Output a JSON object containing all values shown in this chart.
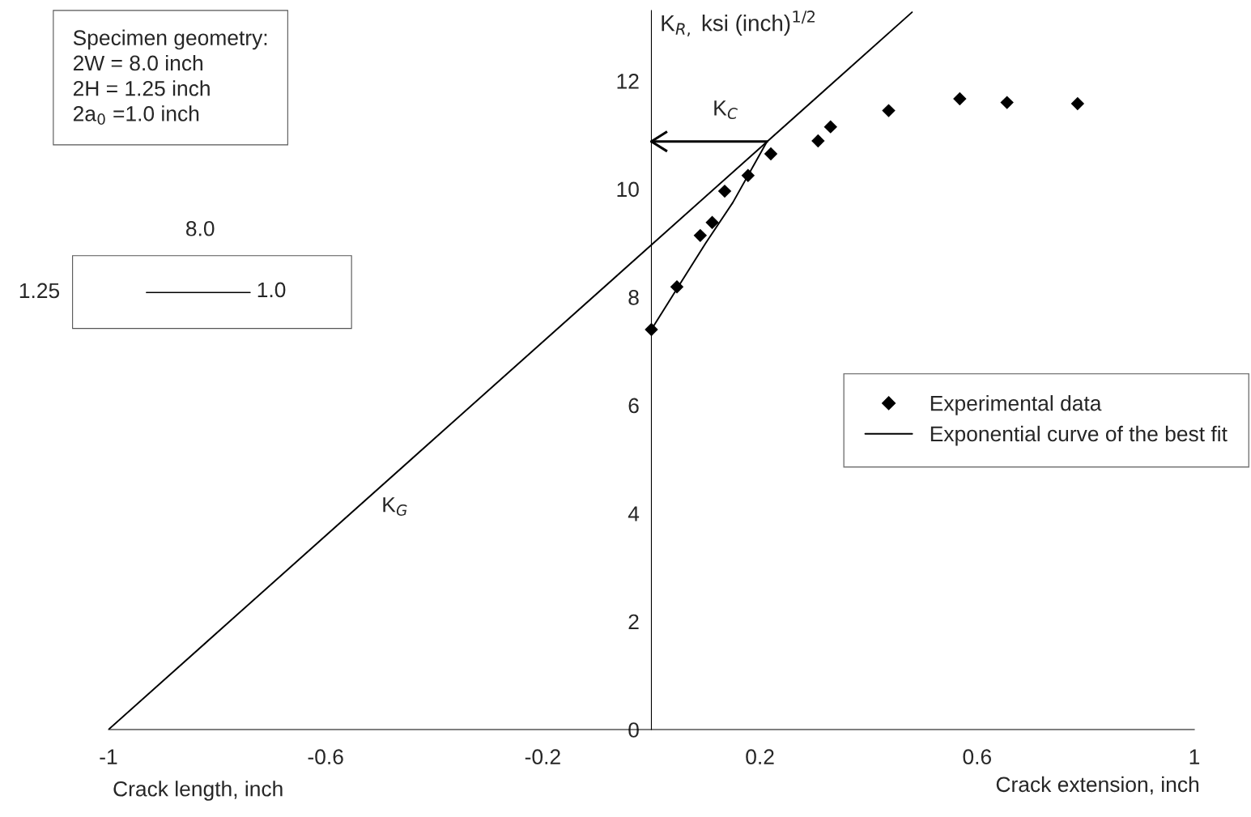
{
  "chart_data": {
    "type": "scatter",
    "xlabel": "Crack extension, inch",
    "ylabel": "K$_{R,}$ ksi (inch)$^{1/2}$",
    "xlim": [
      -1,
      1
    ],
    "xticks": [
      -1,
      -0.6,
      -0.2,
      0.2,
      0.6,
      1
    ],
    "ylim": [
      0,
      13.3
    ],
    "yticks": [
      0,
      2,
      4,
      6,
      8,
      10,
      12
    ],
    "grid": false,
    "legend": "right",
    "series": [
      {
        "name": "Experimental data",
        "marker": "diamond",
        "color": "#000000",
        "x": [
          0,
          0.047,
          0.09,
          0.112,
          0.135,
          0.178,
          0.22,
          0.307,
          0.33,
          0.437,
          0.568,
          0.655,
          0.785
        ],
        "values": [
          7.4,
          8.19,
          9.14,
          9.38,
          9.96,
          10.25,
          10.65,
          10.89,
          11.15,
          11.45,
          11.67,
          11.6,
          11.58
        ]
      },
      {
        "name": "Exponential curve of the best fit",
        "type": "line",
        "marker": "none",
        "color": "#000000",
        "x": [
          0,
          0.05,
          0.1,
          0.15,
          0.213
        ],
        "values": [
          7.4,
          8.2,
          9.0,
          9.75,
          10.88
        ]
      },
      {
        "type": "line",
        "marker": "none",
        "color": "#000000",
        "x": [
          -1,
          0.48
        ],
        "values": [
          0,
          13.27
        ]
      }
    ],
    "ref_lines": [
      {
        "axis": "y",
        "value": 10.88,
        "label": "K$_{C}$"
      }
    ],
    "annotations": [
      "Specimen geometry:\n2W = 8.0 inch\n2H = 1.25 inch\n2a$_{0}$ =1.0 inch",
      "8.0",
      "1.25",
      "1.0",
      "Crack length, inch",
      "K$_{G}$"
    ]
  }
}
